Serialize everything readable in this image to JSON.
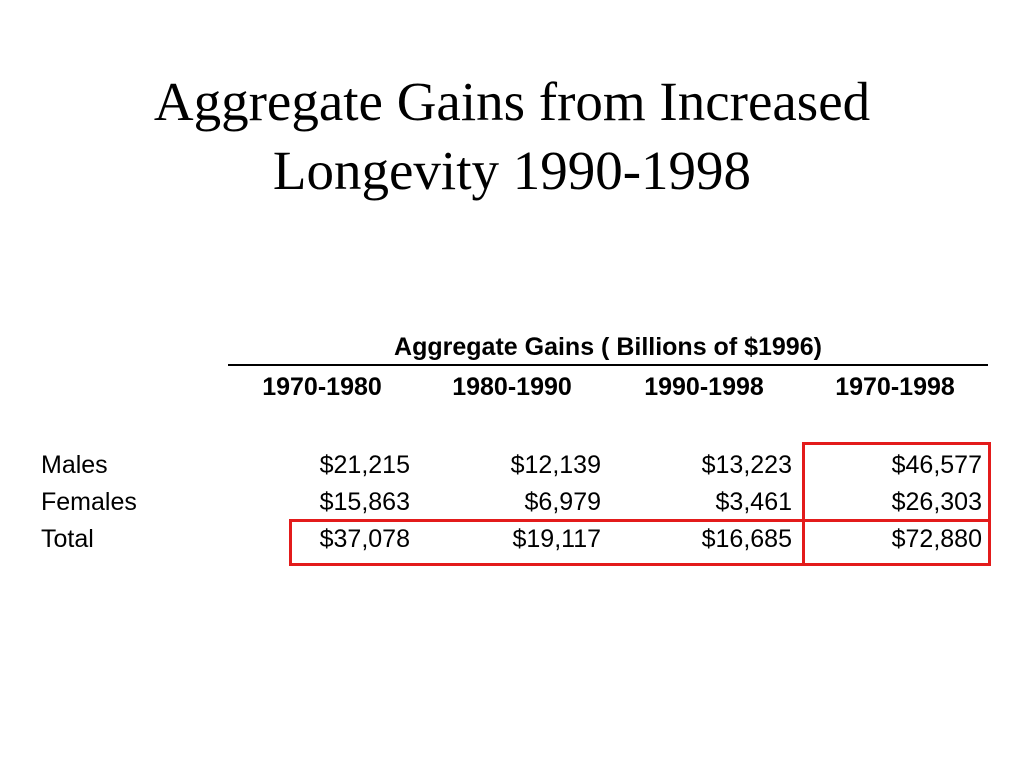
{
  "title": {
    "line1": "Aggregate Gains from Increased",
    "line2": "Longevity 1990-1998"
  },
  "table": {
    "group_header": "Aggregate Gains ( Billions of $1996)",
    "columns": [
      "1970-1980",
      "1980-1990",
      "1990-1998",
      "1970-1998"
    ],
    "rows": [
      {
        "label": "Males",
        "values": [
          "$21,215",
          "$12,139",
          "$13,223",
          "$46,577"
        ]
      },
      {
        "label": "Females",
        "values": [
          "$15,863",
          "$6,979",
          "$3,461",
          "$26,303"
        ]
      },
      {
        "label": "Total",
        "values": [
          "$37,078",
          "$19,117",
          "$16,685",
          "$72,880"
        ]
      }
    ]
  },
  "highlight_color": "#e31b1b"
}
